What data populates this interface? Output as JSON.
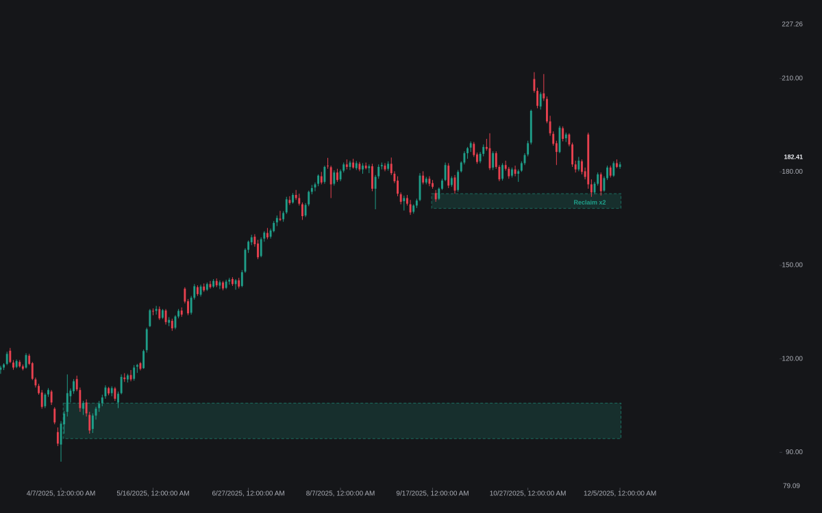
{
  "chart_data": {
    "type": "candlestick",
    "up_color": "#1f9e89",
    "down_color": "#e8414f",
    "ylim": [
      79.09,
      227.26
    ],
    "yticks": [
      {
        "value": 90,
        "label": "90.00"
      },
      {
        "value": 120,
        "label": "120.00"
      },
      {
        "value": 150,
        "label": "150.00"
      },
      {
        "value": 180,
        "label": "180.00"
      },
      {
        "value": 210,
        "label": "210.00"
      }
    ],
    "xlim": [
      -0.2,
      243.5
    ],
    "xticks": [
      {
        "value": 19,
        "label": "4/7/2025, 12:00:00 AM"
      },
      {
        "value": 48,
        "label": "5/16/2025, 12:00:00 AM"
      },
      {
        "value": 78,
        "label": "6/27/2025, 12:00:00 AM"
      },
      {
        "value": 107,
        "label": "8/7/2025, 12:00:00 AM"
      },
      {
        "value": 136,
        "label": "9/17/2025, 12:00:00 AM"
      },
      {
        "value": 166,
        "label": "10/27/2025, 12:00:00 AM"
      },
      {
        "value": 195,
        "label": "12/5/2025, 12:00:00 AM"
      }
    ],
    "zones": [
      {
        "start": 136,
        "end": 195,
        "top": 173.0,
        "bottom": 168.3,
        "label": "Reclaim x2",
        "color": "#1f9e89"
      },
      {
        "start": 20,
        "end": 195,
        "top": 105.8,
        "bottom": 94.4,
        "color": "#1f9e89"
      }
    ],
    "candles": [
      [
        116.5,
        117.8,
        115.2,
        117.2
      ],
      [
        117.2,
        118.6,
        116.4,
        118.2
      ],
      [
        118.4,
        122.3,
        118.0,
        121.6
      ],
      [
        122.6,
        123.5,
        118.6,
        119.0
      ],
      [
        118.8,
        119.6,
        116.5,
        117.2
      ],
      [
        117.4,
        119.8,
        117.0,
        119.3
      ],
      [
        119.0,
        119.6,
        117.2,
        117.6
      ],
      [
        117.6,
        118.2,
        116.3,
        116.8
      ],
      [
        117.2,
        121.8,
        116.9,
        121.2
      ],
      [
        121.0,
        121.6,
        118.0,
        118.4
      ],
      [
        118.6,
        119.0,
        113.2,
        113.6
      ],
      [
        113.4,
        114.0,
        110.8,
        111.5
      ],
      [
        111.3,
        112.0,
        108.5,
        109.0
      ],
      [
        109.2,
        110.0,
        104.0,
        104.6
      ],
      [
        104.8,
        109.0,
        104.2,
        108.5
      ],
      [
        108.6,
        110.6,
        107.8,
        110.0
      ],
      [
        109.5,
        110.0,
        105.2,
        106.0
      ],
      [
        104.0,
        104.5,
        99.0,
        99.6
      ],
      [
        96.5,
        98.0,
        92.0,
        92.8
      ],
      [
        92.5,
        100.0,
        87.0,
        99.2
      ],
      [
        99.0,
        103.2,
        96.0,
        102.4
      ],
      [
        103.0,
        115.0,
        101.5,
        109.0
      ],
      [
        108.0,
        110.5,
        106.0,
        109.8
      ],
      [
        109.6,
        113.5,
        108.8,
        112.8
      ],
      [
        113.5,
        114.6,
        109.6,
        110.2
      ],
      [
        110.0,
        110.8,
        103.0,
        104.2
      ],
      [
        104.0,
        106.5,
        102.0,
        105.8
      ],
      [
        106.0,
        107.0,
        101.5,
        102.5
      ],
      [
        102.0,
        103.0,
        96.0,
        97.0
      ],
      [
        97.5,
        102.5,
        96.2,
        101.8
      ],
      [
        101.8,
        104.6,
        100.5,
        104.0
      ],
      [
        104.2,
        106.5,
        103.0,
        105.6
      ],
      [
        105.8,
        108.5,
        104.8,
        107.6
      ],
      [
        108.0,
        111.5,
        107.2,
        110.8
      ],
      [
        110.6,
        111.0,
        108.3,
        108.9
      ],
      [
        109.0,
        111.2,
        108.0,
        110.6
      ],
      [
        110.5,
        111.0,
        106.5,
        107.2
      ],
      [
        106.0,
        109.5,
        104.2,
        108.8
      ],
      [
        109.0,
        115.0,
        108.6,
        114.2
      ],
      [
        114.0,
        115.4,
        112.6,
        113.5
      ],
      [
        113.4,
        115.2,
        112.4,
        114.7
      ],
      [
        114.8,
        116.4,
        112.8,
        113.4
      ],
      [
        113.6,
        118.0,
        113.0,
        117.2
      ],
      [
        117.5,
        118.4,
        115.5,
        118.0
      ],
      [
        118.6,
        119.0,
        116.3,
        116.8
      ],
      [
        117.0,
        123.0,
        116.8,
        122.5
      ],
      [
        122.8,
        130.0,
        122.0,
        129.5
      ],
      [
        130.5,
        136.0,
        130.2,
        135.6
      ],
      [
        135.4,
        136.2,
        134.0,
        135.2
      ],
      [
        135.4,
        137.0,
        134.2,
        136.0
      ],
      [
        136.0,
        136.8,
        132.5,
        133.0
      ],
      [
        133.2,
        136.0,
        132.8,
        135.6
      ],
      [
        135.5,
        136.0,
        131.0,
        131.8
      ],
      [
        131.6,
        133.4,
        130.5,
        132.5
      ],
      [
        132.2,
        132.9,
        129.0,
        129.8
      ],
      [
        130.0,
        134.0,
        129.5,
        133.6
      ],
      [
        133.6,
        136.0,
        133.0,
        135.4
      ],
      [
        135.5,
        136.5,
        133.5,
        134.2
      ],
      [
        142.5,
        143.0,
        137.8,
        138.4
      ],
      [
        138.5,
        139.2,
        134.0,
        134.6
      ],
      [
        134.8,
        140.2,
        134.2,
        139.6
      ],
      [
        139.6,
        144.0,
        139.0,
        143.3
      ],
      [
        143.0,
        143.6,
        140.2,
        140.8
      ],
      [
        140.6,
        143.8,
        140.0,
        143.2
      ],
      [
        143.2,
        144.2,
        141.5,
        142.0
      ],
      [
        142.2,
        144.5,
        141.8,
        144.0
      ],
      [
        144.0,
        145.0,
        142.5,
        143.0
      ],
      [
        143.2,
        145.6,
        142.8,
        145.0
      ],
      [
        145.0,
        145.8,
        143.0,
        143.6
      ],
      [
        143.5,
        145.2,
        142.4,
        144.6
      ],
      [
        144.5,
        145.0,
        142.0,
        142.6
      ],
      [
        142.8,
        145.4,
        142.4,
        144.8
      ],
      [
        144.8,
        146.0,
        143.8,
        145.4
      ],
      [
        145.6,
        146.2,
        143.4,
        144.0
      ],
      [
        144.0,
        145.6,
        142.2,
        145.2
      ],
      [
        145.2,
        146.0,
        142.6,
        143.2
      ],
      [
        143.4,
        148.5,
        143.0,
        147.8
      ],
      [
        148.0,
        155.5,
        147.6,
        155.0
      ],
      [
        155.0,
        158.0,
        154.0,
        157.6
      ],
      [
        157.4,
        159.8,
        156.5,
        159.0
      ],
      [
        159.2,
        160.0,
        156.0,
        156.8
      ],
      [
        157.0,
        158.2,
        152.0,
        152.6
      ],
      [
        153.0,
        159.0,
        152.6,
        158.4
      ],
      [
        158.6,
        161.0,
        157.6,
        160.5
      ],
      [
        160.4,
        162.0,
        158.4,
        159.0
      ],
      [
        159.2,
        161.8,
        158.6,
        161.2
      ],
      [
        161.0,
        164.2,
        160.6,
        163.6
      ],
      [
        163.8,
        166.0,
        162.6,
        165.2
      ],
      [
        165.0,
        167.5,
        164.2,
        164.6
      ],
      [
        164.8,
        167.4,
        164.0,
        166.8
      ],
      [
        167.0,
        172.0,
        166.5,
        171.2
      ],
      [
        171.0,
        172.2,
        169.4,
        170.0
      ],
      [
        170.2,
        173.2,
        169.8,
        172.6
      ],
      [
        172.6,
        174.2,
        171.0,
        171.6
      ],
      [
        171.6,
        173.0,
        169.2,
        169.8
      ],
      [
        169.6,
        170.2,
        164.6,
        165.8
      ],
      [
        166.0,
        170.0,
        165.5,
        169.4
      ],
      [
        169.6,
        174.0,
        169.0,
        173.6
      ],
      [
        173.6,
        175.8,
        172.8,
        174.8
      ],
      [
        175.0,
        176.6,
        173.8,
        176.0
      ],
      [
        176.2,
        179.2,
        175.4,
        178.8
      ],
      [
        178.6,
        180.0,
        176.0,
        176.6
      ],
      [
        176.8,
        182.0,
        176.2,
        181.6
      ],
      [
        182.0,
        184.5,
        181.0,
        181.8
      ],
      [
        181.5,
        182.0,
        171.6,
        176.0
      ],
      [
        176.2,
        180.5,
        175.6,
        179.8
      ],
      [
        179.8,
        181.0,
        176.8,
        177.4
      ],
      [
        177.6,
        180.8,
        177.0,
        180.2
      ],
      [
        180.4,
        183.0,
        179.8,
        182.4
      ],
      [
        182.4,
        184.0,
        180.8,
        181.6
      ],
      [
        181.6,
        183.6,
        180.6,
        183.0
      ],
      [
        183.0,
        184.2,
        181.0,
        181.4
      ],
      [
        181.2,
        183.5,
        180.6,
        182.8
      ],
      [
        182.6,
        183.2,
        180.2,
        180.8
      ],
      [
        180.8,
        182.8,
        179.4,
        182.0
      ],
      [
        182.0,
        183.0,
        180.8,
        181.2
      ],
      [
        181.2,
        182.4,
        179.6,
        181.8
      ],
      [
        181.8,
        182.6,
        173.8,
        174.6
      ],
      [
        174.6,
        179.0,
        168.0,
        178.4
      ],
      [
        178.6,
        182.4,
        177.8,
        181.6
      ],
      [
        181.8,
        183.0,
        180.8,
        182.2
      ],
      [
        182.0,
        182.8,
        180.2,
        180.8
      ],
      [
        181.0,
        183.4,
        180.4,
        182.6
      ],
      [
        182.6,
        184.6,
        179.0,
        179.6
      ],
      [
        179.4,
        180.2,
        176.4,
        177.0
      ],
      [
        177.2,
        178.6,
        172.2,
        173.0
      ],
      [
        172.8,
        173.4,
        169.6,
        170.4
      ],
      [
        170.6,
        172.4,
        167.6,
        171.6
      ],
      [
        171.6,
        172.6,
        169.2,
        169.8
      ],
      [
        169.6,
        171.0,
        166.2,
        167.0
      ],
      [
        167.2,
        169.6,
        166.6,
        169.2
      ],
      [
        169.2,
        171.4,
        168.4,
        170.8
      ],
      [
        171.0,
        179.6,
        170.6,
        178.8
      ],
      [
        178.8,
        180.2,
        176.0,
        176.6
      ],
      [
        176.6,
        178.4,
        176.0,
        177.8
      ],
      [
        177.8,
        178.6,
        175.4,
        176.2
      ],
      [
        176.4,
        177.4,
        174.6,
        175.2
      ],
      [
        173.2,
        174.2,
        170.4,
        171.2
      ],
      [
        171.4,
        175.0,
        171.0,
        174.6
      ],
      [
        174.6,
        177.8,
        174.2,
        177.2
      ],
      [
        177.4,
        183.0,
        177.0,
        182.2
      ],
      [
        182.0,
        182.8,
        174.8,
        175.6
      ],
      [
        175.8,
        178.6,
        175.2,
        178.0
      ],
      [
        178.2,
        179.0,
        173.0,
        174.0
      ],
      [
        174.2,
        180.6,
        173.6,
        180.0
      ],
      [
        180.2,
        183.4,
        179.8,
        183.0
      ],
      [
        183.0,
        186.6,
        182.4,
        186.0
      ],
      [
        186.0,
        188.0,
        184.2,
        187.6
      ],
      [
        187.8,
        189.8,
        186.4,
        189.2
      ],
      [
        189.0,
        189.6,
        184.8,
        185.4
      ],
      [
        185.6,
        186.2,
        182.6,
        183.2
      ],
      [
        183.4,
        186.4,
        182.8,
        185.8
      ],
      [
        185.8,
        188.8,
        185.0,
        188.0
      ],
      [
        188.0,
        190.6,
        186.8,
        187.4
      ],
      [
        187.6,
        192.4,
        180.6,
        181.2
      ],
      [
        181.4,
        186.6,
        180.6,
        186.0
      ],
      [
        186.0,
        186.6,
        181.0,
        181.6
      ],
      [
        181.6,
        182.2,
        177.0,
        177.6
      ],
      [
        177.8,
        182.8,
        177.2,
        182.2
      ],
      [
        182.2,
        183.6,
        180.4,
        181.0
      ],
      [
        181.0,
        181.6,
        177.8,
        178.6
      ],
      [
        178.8,
        181.4,
        178.2,
        180.8
      ],
      [
        180.8,
        182.0,
        178.6,
        179.4
      ],
      [
        179.4,
        180.8,
        176.8,
        180.2
      ],
      [
        180.4,
        183.4,
        180.0,
        182.8
      ],
      [
        182.8,
        186.0,
        182.2,
        185.4
      ],
      [
        185.6,
        190.0,
        185.0,
        189.2
      ],
      [
        189.4,
        200.0,
        188.8,
        199.6
      ],
      [
        209.8,
        212.0,
        205.4,
        206.0
      ],
      [
        206.0,
        207.0,
        200.4,
        201.2
      ],
      [
        201.0,
        205.6,
        200.0,
        205.0
      ],
      [
        205.2,
        211.4,
        202.8,
        203.6
      ],
      [
        203.4,
        204.2,
        195.6,
        196.2
      ],
      [
        196.2,
        198.0,
        191.6,
        192.4
      ],
      [
        192.2,
        193.0,
        188.4,
        189.0
      ],
      [
        189.2,
        190.0,
        182.2,
        186.4
      ],
      [
        186.4,
        194.8,
        186.0,
        194.2
      ],
      [
        194.0,
        194.6,
        189.8,
        190.6
      ],
      [
        190.8,
        192.6,
        189.6,
        192.0
      ],
      [
        192.0,
        192.4,
        188.2,
        188.8
      ],
      [
        188.8,
        189.4,
        181.6,
        182.4
      ],
      [
        182.4,
        183.6,
        179.8,
        180.8
      ],
      [
        180.8,
        184.8,
        180.2,
        183.6
      ],
      [
        183.4,
        184.0,
        179.2,
        180.0
      ],
      [
        180.2,
        181.4,
        177.6,
        178.4
      ],
      [
        192.0,
        192.6,
        174.6,
        176.0
      ],
      [
        176.0,
        177.6,
        172.0,
        173.4
      ],
      [
        173.4,
        176.8,
        172.8,
        176.2
      ],
      [
        176.2,
        179.8,
        175.6,
        179.2
      ],
      [
        179.2,
        179.8,
        172.4,
        173.8
      ],
      [
        174.0,
        178.6,
        173.6,
        178.0
      ],
      [
        178.0,
        182.0,
        177.4,
        181.4
      ],
      [
        181.4,
        182.0,
        178.2,
        178.8
      ],
      [
        178.8,
        183.4,
        178.4,
        182.8
      ],
      [
        182.8,
        184.0,
        181.2,
        181.6
      ],
      [
        181.6,
        183.2,
        181.0,
        182.41
      ]
    ]
  }
}
